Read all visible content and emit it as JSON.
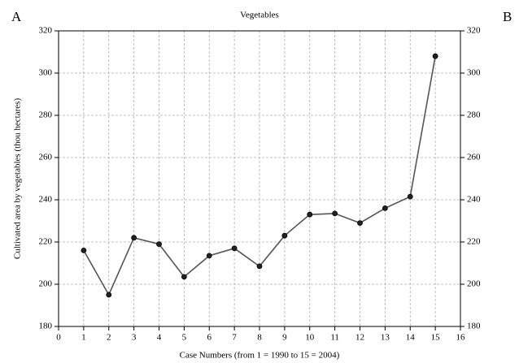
{
  "chart_data": {
    "type": "line",
    "title": "Vegetables",
    "annotations": [
      "A",
      "B"
    ],
    "xlabel": "Case Numbers (from 1 = 1990 to 15 = 2004)",
    "ylabel": "Cultivated area by vegetables (thou hectares)",
    "x": [
      1,
      2,
      3,
      4,
      5,
      6,
      7,
      8,
      9,
      10,
      11,
      12,
      13,
      14,
      15
    ],
    "series": [
      {
        "color": "#555555",
        "values": [
          216,
          195,
          222,
          219,
          203.5,
          213.5,
          217,
          208.5,
          223,
          233,
          233.5,
          229,
          236,
          241.5,
          308
        ]
      }
    ],
    "xlim": [
      0,
      16
    ],
    "xticks": [
      0,
      1,
      2,
      3,
      4,
      5,
      6,
      7,
      8,
      9,
      10,
      11,
      12,
      13,
      14,
      15,
      16
    ],
    "ylim": [
      180,
      320
    ],
    "yticks": [
      180,
      200,
      220,
      240,
      260,
      280,
      300,
      320
    ],
    "y2lim": [
      180,
      320
    ],
    "y2ticks": [
      180,
      200,
      220,
      240,
      260,
      280,
      300,
      320
    ],
    "grid": true
  }
}
